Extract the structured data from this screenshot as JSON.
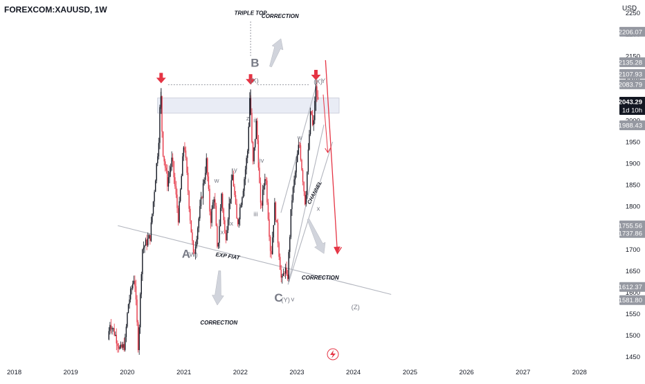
{
  "header": {
    "symbol": "FOREXCOM:XAUUSD, 1W",
    "currency": "USD"
  },
  "colors": {
    "up": "#131722",
    "down": "#e53444",
    "arrow": "#e53444",
    "trendline": "#b2b5be",
    "zone_fill": "#e9ecf5",
    "zone_stroke": "#c4c8d6",
    "tag_bg": "#9598a1",
    "current_tag_bg": "#131722",
    "wave_label": "#787b86"
  },
  "chart_data": {
    "type": "candlestick",
    "symbol": "FOREXCOM:XAUUSD",
    "timeframe": "1W",
    "ylim": [
      1430,
      2280
    ],
    "xlim": [
      "2017-10-01",
      "2028-08-01"
    ],
    "y_ticks": [
      1450,
      1500,
      1550,
      1600,
      1650,
      1700,
      1750,
      1800,
      1850,
      1900,
      1950,
      2000,
      2050,
      2100,
      2150,
      2200,
      2250
    ],
    "x_ticks": [
      "2018",
      "2019",
      "2020",
      "2021",
      "2022",
      "2023",
      "2024",
      "2025",
      "2026",
      "2027",
      "2028"
    ],
    "price_tags": [
      {
        "value": 2206.07,
        "text": "2206.07"
      },
      {
        "value": 2135.28,
        "text": "2135.28"
      },
      {
        "value": 2107.93,
        "text": "2107.93"
      },
      {
        "value": 2083.79,
        "text": "2083.79"
      },
      {
        "value": 1988.43,
        "text": "1988.43"
      },
      {
        "value": 1755.56,
        "text": "1755.56"
      },
      {
        "value": 1737.86,
        "text": "1737.86"
      },
      {
        "value": 1612.37,
        "text": "1612.37"
      },
      {
        "value": 1581.8,
        "text": "1581.80"
      }
    ],
    "current_price": {
      "value": 2043.29,
      "text": "2043.29",
      "countdown": "1d 10h"
    },
    "resistance_zone": {
      "from": "2020-07-15",
      "to": "2023-10-01",
      "low": 2017,
      "high": 2052
    },
    "price_path": [
      {
        "date": "2019-09-01",
        "price": 1490
      },
      {
        "date": "2019-09-15",
        "price": 1530
      },
      {
        "date": "2019-10-15",
        "price": 1505
      },
      {
        "date": "2019-11-20",
        "price": 1465
      },
      {
        "date": "2019-12-20",
        "price": 1478
      },
      {
        "date": "2020-01-10",
        "price": 1570
      },
      {
        "date": "2020-02-20",
        "price": 1640
      },
      {
        "date": "2020-03-16",
        "price": 1470
      },
      {
        "date": "2020-04-10",
        "price": 1700
      },
      {
        "date": "2020-06-01",
        "price": 1730
      },
      {
        "date": "2020-07-25",
        "price": 1950
      },
      {
        "date": "2020-08-07",
        "price": 2072
      },
      {
        "date": "2020-08-20",
        "price": 1935
      },
      {
        "date": "2020-09-20",
        "price": 1855
      },
      {
        "date": "2020-10-20",
        "price": 1910
      },
      {
        "date": "2020-11-30",
        "price": 1770
      },
      {
        "date": "2021-01-06",
        "price": 1955
      },
      {
        "date": "2021-02-10",
        "price": 1790
      },
      {
        "date": "2021-03-08",
        "price": 1680
      },
      {
        "date": "2021-05-30",
        "price": 1905
      },
      {
        "date": "2021-06-25",
        "price": 1765
      },
      {
        "date": "2021-07-20",
        "price": 1830
      },
      {
        "date": "2021-08-09",
        "price": 1690
      },
      {
        "date": "2021-09-05",
        "price": 1830
      },
      {
        "date": "2021-09-29",
        "price": 1720
      },
      {
        "date": "2021-11-15",
        "price": 1875
      },
      {
        "date": "2021-12-15",
        "price": 1755
      },
      {
        "date": "2022-01-25",
        "price": 1850
      },
      {
        "date": "2022-02-20",
        "price": 1930
      },
      {
        "date": "2022-03-08",
        "price": 2070
      },
      {
        "date": "2022-03-25",
        "price": 1890
      },
      {
        "date": "2022-04-18",
        "price": 1998
      },
      {
        "date": "2022-05-16",
        "price": 1790
      },
      {
        "date": "2022-06-15",
        "price": 1880
      },
      {
        "date": "2022-07-21",
        "price": 1680
      },
      {
        "date": "2022-08-15",
        "price": 1805
      },
      {
        "date": "2022-09-28",
        "price": 1620
      },
      {
        "date": "2022-10-20",
        "price": 1660
      },
      {
        "date": "2022-11-03",
        "price": 1618
      },
      {
        "date": "2022-12-01",
        "price": 1810
      },
      {
        "date": "2023-01-20",
        "price": 1950
      },
      {
        "date": "2023-02-28",
        "price": 1805
      },
      {
        "date": "2023-04-05",
        "price": 2030
      },
      {
        "date": "2023-04-20",
        "price": 1970
      },
      {
        "date": "2023-05-04",
        "price": 2080
      },
      {
        "date": "2023-05-20",
        "price": 2043
      }
    ],
    "annotations": {
      "triple_top_markers": [
        {
          "date": "2020-08-07",
          "price": 2075
        },
        {
          "date": "2022-03-08",
          "price": 2072
        },
        {
          "date": "2023-05-04",
          "price": 2082
        }
      ],
      "labels": [
        {
          "text": "TRIPLE TOP",
          "date": "2022-03-08",
          "price": 2245,
          "kind": "caption"
        },
        {
          "text": "CORRECTION",
          "date": "2022-09-15",
          "price": 2238,
          "kind": "caption"
        },
        {
          "text": "CORRECTION",
          "date": "2023-06-01",
          "price": 1630,
          "kind": "caption"
        },
        {
          "text": "CORRECTION",
          "date": "2021-08-15",
          "price": 1525,
          "kind": "caption"
        },
        {
          "text": "EXP FIAT",
          "date": "2021-10-10",
          "price": 1680,
          "kind": "italic"
        },
        {
          "text": "CHANNEL",
          "date": "2023-05-05",
          "price": 1830,
          "kind": "rotated"
        },
        {
          "text": "B",
          "date": "2022-04-05",
          "price": 2125,
          "kind": "major"
        },
        {
          "text": "(X)",
          "date": "2022-04-01",
          "price": 2088,
          "kind": "minor"
        },
        {
          "text": "(X)",
          "date": "2023-05-18",
          "price": 2085,
          "kind": "minor"
        },
        {
          "text": "Y",
          "date": "2023-06-20",
          "price": 2087,
          "kind": "minor"
        },
        {
          "text": "A",
          "date": "2021-01-15",
          "price": 1680,
          "kind": "major"
        },
        {
          "text": "(W)",
          "date": "2021-02-25",
          "price": 1683,
          "kind": "minor"
        },
        {
          "text": "C",
          "date": "2022-09-05",
          "price": 1578,
          "kind": "major"
        },
        {
          "text": "(Y)",
          "date": "2022-10-20",
          "price": 1577,
          "kind": "minor"
        },
        {
          "text": "v",
          "date": "2022-12-05",
          "price": 1579,
          "kind": "minor"
        },
        {
          "text": "(Z)",
          "date": "2024-01-15",
          "price": 1560,
          "kind": "minor"
        },
        {
          "text": "z",
          "date": "2022-02-18",
          "price": 2000,
          "kind": "minor"
        },
        {
          "text": "ii",
          "date": "2022-04-05",
          "price": 1995,
          "kind": "minor"
        },
        {
          "text": "iv",
          "date": "2022-05-18",
          "price": 1902,
          "kind": "minor"
        },
        {
          "text": "i",
          "date": "2022-02-22",
          "price": 1855,
          "kind": "minor"
        },
        {
          "text": "iii",
          "date": "2022-04-10",
          "price": 1777,
          "kind": "minor"
        },
        {
          "text": "w",
          "date": "2021-08-01",
          "price": 1855,
          "kind": "minor"
        },
        {
          "text": "y",
          "date": "2021-12-01",
          "price": 1880,
          "kind": "minor"
        },
        {
          "text": "x",
          "date": "2021-09-05",
          "price": 1735,
          "kind": "minor"
        },
        {
          "text": "x",
          "date": "2021-11-05",
          "price": 1755,
          "kind": "minor"
        },
        {
          "text": "w",
          "date": "2023-01-20",
          "price": 1955,
          "kind": "minor"
        },
        {
          "text": "x",
          "date": "2023-05-20",
          "price": 1790,
          "kind": "minor"
        }
      ]
    }
  },
  "bottom_icon": "lightning-icon"
}
